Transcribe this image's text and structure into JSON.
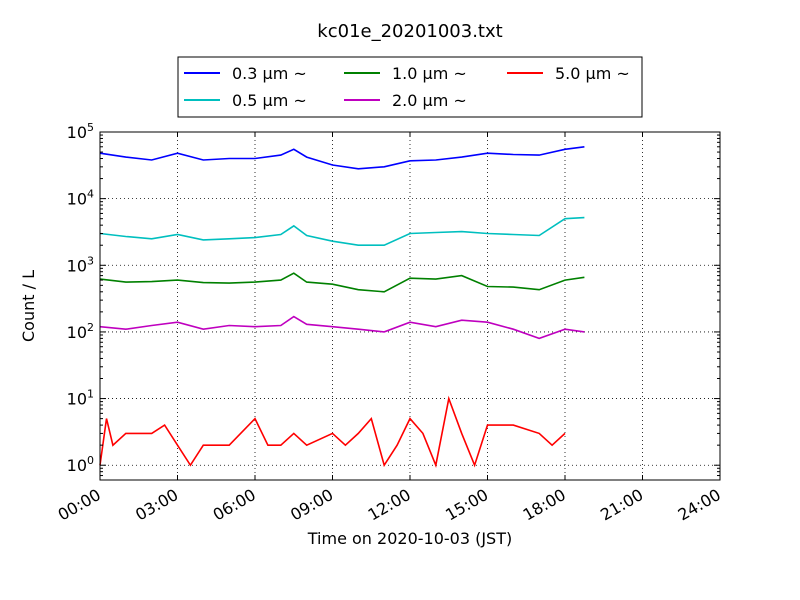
{
  "chart_data": {
    "type": "line",
    "title": "kc01e_20201003.txt",
    "xlabel": "Time on 2020-10-03 (JST)",
    "ylabel": "Count / L",
    "xlim": [
      "00:00",
      "24:00"
    ],
    "ylim": [
      0.6,
      100000
    ],
    "yscale": "log",
    "grid": true,
    "legend_position": "top",
    "x_ticks": [
      "00:00",
      "03:00",
      "06:00",
      "09:00",
      "12:00",
      "15:00",
      "18:00",
      "21:00",
      "24:00"
    ],
    "y_ticks": [
      {
        "base": "10",
        "exp": "0",
        "value": 1
      },
      {
        "base": "10",
        "exp": "1",
        "value": 10
      },
      {
        "base": "10",
        "exp": "2",
        "value": 100
      },
      {
        "base": "10",
        "exp": "3",
        "value": 1000
      },
      {
        "base": "10",
        "exp": "4",
        "value": 10000
      },
      {
        "base": "10",
        "exp": "5",
        "value": 100000
      }
    ],
    "series": [
      {
        "name": "0.3 μm ~",
        "color": "#0000ff",
        "x": [
          "00:00",
          "01:00",
          "02:00",
          "03:00",
          "04:00",
          "05:00",
          "06:00",
          "07:00",
          "07:30",
          "08:00",
          "09:00",
          "10:00",
          "11:00",
          "12:00",
          "13:00",
          "14:00",
          "15:00",
          "16:00",
          "17:00",
          "18:00",
          "18:45"
        ],
        "y": [
          48000,
          42000,
          38000,
          48000,
          38000,
          40000,
          40000,
          45000,
          55000,
          42000,
          32000,
          28000,
          30000,
          37000,
          38000,
          42000,
          48000,
          46000,
          45000,
          55000,
          60000
        ]
      },
      {
        "name": "0.5 μm ~",
        "color": "#00bfbf",
        "x": [
          "00:00",
          "01:00",
          "02:00",
          "03:00",
          "04:00",
          "05:00",
          "06:00",
          "07:00",
          "07:30",
          "08:00",
          "09:00",
          "10:00",
          "11:00",
          "12:00",
          "13:00",
          "14:00",
          "15:00",
          "16:00",
          "17:00",
          "18:00",
          "18:45"
        ],
        "y": [
          3000,
          2700,
          2500,
          2900,
          2400,
          2500,
          2600,
          2900,
          3900,
          2800,
          2300,
          2000,
          2000,
          3000,
          3100,
          3200,
          3000,
          2900,
          2800,
          5000,
          5200
        ]
      },
      {
        "name": "1.0 μm ~",
        "color": "#008000",
        "x": [
          "00:00",
          "01:00",
          "02:00",
          "03:00",
          "04:00",
          "05:00",
          "06:00",
          "07:00",
          "07:30",
          "08:00",
          "09:00",
          "10:00",
          "11:00",
          "12:00",
          "13:00",
          "14:00",
          "15:00",
          "16:00",
          "17:00",
          "18:00",
          "18:45"
        ],
        "y": [
          620,
          560,
          570,
          600,
          550,
          540,
          560,
          600,
          760,
          560,
          520,
          430,
          400,
          640,
          620,
          700,
          480,
          470,
          430,
          600,
          660
        ]
      },
      {
        "name": "2.0 μm ~",
        "color": "#bf00bf",
        "x": [
          "00:00",
          "01:00",
          "02:00",
          "03:00",
          "04:00",
          "05:00",
          "06:00",
          "07:00",
          "07:30",
          "08:00",
          "09:00",
          "10:00",
          "11:00",
          "12:00",
          "13:00",
          "14:00",
          "15:00",
          "16:00",
          "17:00",
          "18:00",
          "18:45"
        ],
        "y": [
          120,
          110,
          125,
          140,
          110,
          125,
          120,
          125,
          170,
          130,
          120,
          110,
          100,
          140,
          120,
          150,
          140,
          110,
          80,
          110,
          100
        ]
      },
      {
        "name": "5.0 μm ~",
        "color": "#ff0000",
        "x": [
          "00:00",
          "00:15",
          "00:30",
          "01:00",
          "02:00",
          "02:30",
          "03:00",
          "03:30",
          "04:00",
          "05:00",
          "06:00",
          "06:30",
          "07:00",
          "07:30",
          "08:00",
          "09:00",
          "09:30",
          "10:00",
          "10:30",
          "11:00",
          "11:30",
          "12:00",
          "12:30",
          "13:00",
          "13:30",
          "14:00",
          "14:30",
          "15:00",
          "16:00",
          "17:00",
          "17:30",
          "18:00"
        ],
        "y": [
          1,
          5,
          2,
          3,
          3,
          4,
          2,
          1,
          2,
          2,
          5,
          2,
          2,
          3,
          2,
          3,
          2,
          3,
          5,
          1,
          2,
          5,
          3,
          1,
          10,
          3,
          1,
          4,
          4,
          3,
          2,
          3
        ]
      }
    ]
  }
}
